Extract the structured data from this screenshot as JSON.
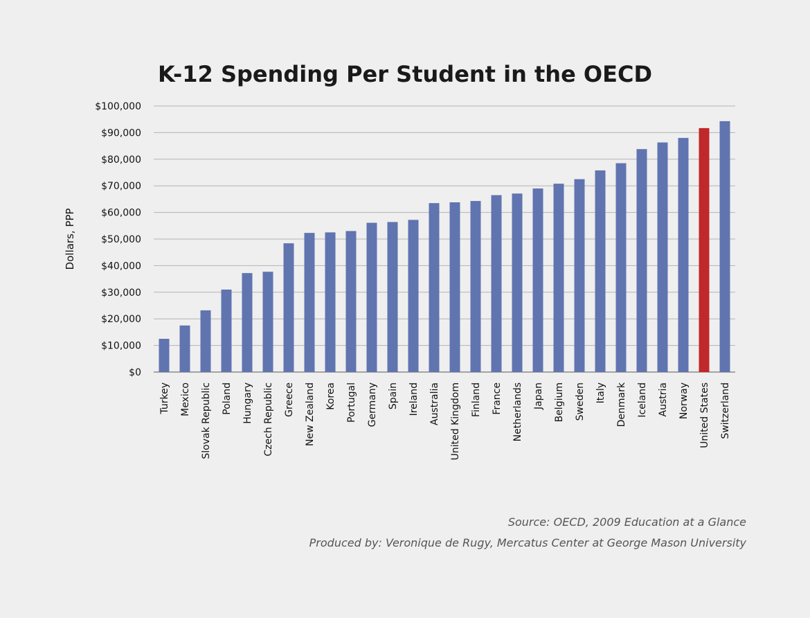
{
  "chart_data": {
    "type": "bar",
    "title": "K-12 Spending Per Student in the OECD",
    "ylabel": "Dollars, PPP",
    "xlabel": "",
    "ylim": [
      0,
      100000
    ],
    "yticks": [
      0,
      10000,
      20000,
      30000,
      40000,
      50000,
      60000,
      70000,
      80000,
      90000,
      100000
    ],
    "ytick_labels": [
      "$0",
      "$10,000",
      "$20,000",
      "$30,000",
      "$40,000",
      "$50,000",
      "$60,000",
      "$70,000",
      "$80,000",
      "$90,000",
      "$100,000"
    ],
    "grid": true,
    "categories": [
      "Turkey",
      "Mexico",
      "Slovak Republic",
      "Poland",
      "Hungary",
      "Czech Republic",
      "Greece",
      "New Zealand",
      "Korea",
      "Portugal",
      "Germany",
      "Spain",
      "Ireland",
      "Australia",
      "United Kingdom",
      "Finland",
      "France",
      "Netherlands",
      "Japan",
      "Belgium",
      "Sweden",
      "Italy",
      "Denmark",
      "Iceland",
      "Austria",
      "Norway",
      "United States",
      "Switzerland"
    ],
    "values": [
      12500,
      17500,
      23200,
      31000,
      37200,
      37700,
      48400,
      52300,
      52500,
      53000,
      56100,
      56400,
      57200,
      63500,
      63800,
      64300,
      66500,
      67100,
      69000,
      70800,
      72500,
      75800,
      78500,
      83800,
      86300,
      88000,
      91700,
      94300
    ],
    "colors": {
      "default": "#6074B0",
      "highlight": "#C0282B",
      "highlight_category": "United States"
    }
  },
  "source": "Source: OECD, 2009  Education at a Glance",
  "produced": "Produced by: Veronique de Rugy, Mercatus Center at George Mason University"
}
